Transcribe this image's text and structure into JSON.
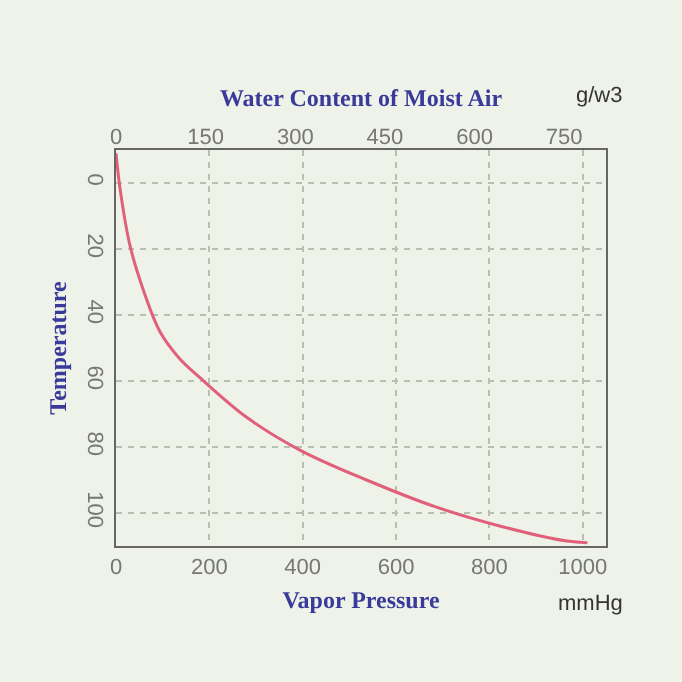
{
  "chart_data": {
    "type": "line",
    "xlabel": "Vapor Pressure",
    "ylabel": "Temperature",
    "x2label": "Water Content of Moist Air",
    "annotations": [
      "g/w3",
      "mmHg"
    ],
    "x": [
      0,
      9,
      30,
      60,
      94,
      135,
      180,
      280,
      395,
      537,
      682,
      824,
      966,
      1010
    ],
    "series": [
      {
        "color": "#e0607a",
        "values": [
          -9,
          2,
          19,
          33,
          45,
          53,
          59,
          71,
          81,
          90,
          98,
          104,
          108.5,
          109
        ]
      }
    ],
    "xlim": [
      0,
      1050
    ],
    "xticks": [
      0,
      200,
      400,
      600,
      800,
      1000
    ],
    "x2lim": [
      0,
      820
    ],
    "x2ticks": [
      0,
      150,
      300,
      450,
      600,
      750
    ],
    "ylim": [
      110,
      -10
    ],
    "yticks": [
      0,
      20,
      40,
      60,
      80,
      100
    ],
    "grid": true,
    "marker": "none",
    "line_style": "solid"
  }
}
